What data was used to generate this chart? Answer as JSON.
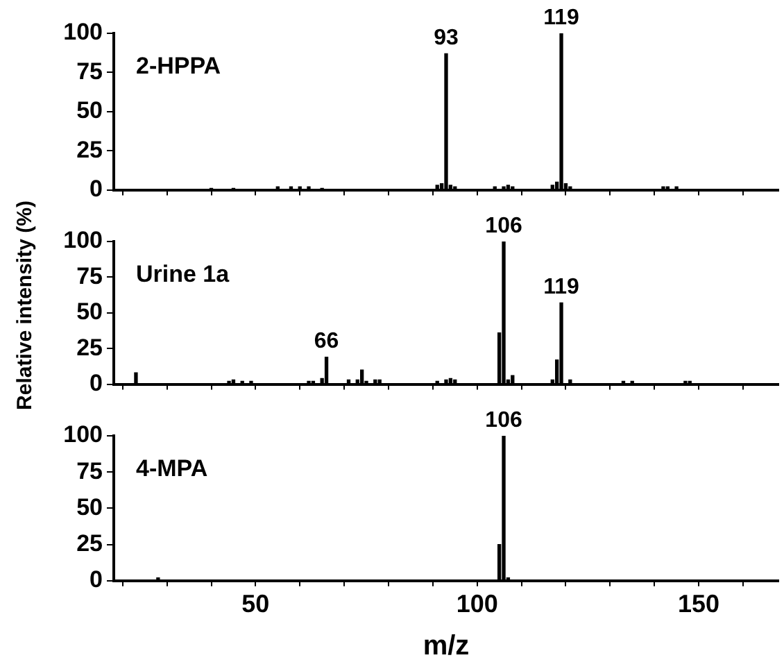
{
  "chart_data": [
    {
      "type": "bar",
      "title": "2-HPPA",
      "x": [
        40,
        45,
        55,
        58,
        60,
        62,
        65,
        91,
        92,
        93,
        94,
        95,
        104,
        106,
        107,
        108,
        117,
        118,
        119,
        120,
        121,
        142,
        143,
        145
      ],
      "values": [
        1,
        1,
        2,
        2,
        2,
        2,
        1,
        3,
        4,
        87,
        3,
        2,
        2,
        2,
        3,
        2,
        3,
        5,
        100,
        4,
        2,
        2,
        2,
        2
      ],
      "color": "#000000",
      "xlim": [
        18,
        168
      ],
      "xticks": [
        {
          "value": 20,
          "label": null
        },
        {
          "value": 30,
          "label": null
        },
        {
          "value": 40,
          "label": null
        },
        50,
        {
          "value": 60,
          "label": null
        },
        {
          "value": 70,
          "label": null
        },
        {
          "value": 80,
          "label": null
        },
        {
          "value": 90,
          "label": null
        },
        100,
        {
          "value": 110,
          "label": null
        },
        {
          "value": 120,
          "label": null
        },
        {
          "value": 130,
          "label": null
        },
        {
          "value": 140,
          "label": null
        },
        150,
        {
          "value": 160,
          "label": null
        }
      ],
      "ylim": [
        0,
        100
      ],
      "yticks": [
        0,
        25,
        50,
        75,
        100
      ],
      "tick_labels": "y",
      "grid": false,
      "legend": false,
      "annotations": [
        {
          "text": "93",
          "x": 93,
          "y": 87
        },
        {
          "text": "119",
          "x": 119,
          "y": 100
        }
      ]
    },
    {
      "type": "bar",
      "title": "Urine 1a",
      "ylabel": "Relative intensity (%)",
      "x": [
        23,
        44,
        45,
        47,
        49,
        62,
        63,
        65,
        66,
        71,
        73,
        74,
        75,
        77,
        78,
        91,
        93,
        94,
        95,
        105,
        106,
        107,
        108,
        117,
        118,
        119,
        121,
        133,
        135,
        147,
        148
      ],
      "values": [
        8,
        2,
        3,
        2,
        2,
        2,
        2,
        4,
        19,
        3,
        3,
        10,
        2,
        3,
        3,
        2,
        3,
        4,
        3,
        36,
        100,
        3,
        6,
        3,
        17,
        57,
        3,
        2,
        2,
        2,
        2
      ],
      "color": "#000000",
      "xlim": [
        18,
        168
      ],
      "xticks": [
        {
          "value": 20,
          "label": null
        },
        {
          "value": 30,
          "label": null
        },
        {
          "value": 40,
          "label": null
        },
        50,
        {
          "value": 60,
          "label": null
        },
        {
          "value": 70,
          "label": null
        },
        {
          "value": 80,
          "label": null
        },
        {
          "value": 90,
          "label": null
        },
        100,
        {
          "value": 110,
          "label": null
        },
        {
          "value": 120,
          "label": null
        },
        {
          "value": 130,
          "label": null
        },
        {
          "value": 140,
          "label": null
        },
        150,
        {
          "value": 160,
          "label": null
        }
      ],
      "ylim": [
        0,
        100
      ],
      "yticks": [
        0,
        25,
        50,
        75,
        100
      ],
      "tick_labels": "y",
      "grid": false,
      "legend": false,
      "annotations": [
        {
          "text": "66",
          "x": 66,
          "y": 19
        },
        {
          "text": "106",
          "x": 106,
          "y": 100
        },
        {
          "text": "119",
          "x": 119,
          "y": 57
        }
      ]
    },
    {
      "type": "bar",
      "title": "4-MPA",
      "xlabel": "m/z",
      "x": [
        28,
        105,
        106,
        107
      ],
      "values": [
        2,
        25,
        100,
        2
      ],
      "color": "#000000",
      "xlim": [
        18,
        168
      ],
      "xticks": [
        {
          "value": 20,
          "label": null
        },
        {
          "value": 30,
          "label": null
        },
        {
          "value": 40,
          "label": null
        },
        50,
        {
          "value": 60,
          "label": null
        },
        {
          "value": 70,
          "label": null
        },
        {
          "value": 80,
          "label": null
        },
        {
          "value": 90,
          "label": null
        },
        100,
        {
          "value": 110,
          "label": null
        },
        {
          "value": 120,
          "label": null
        },
        {
          "value": 130,
          "label": null
        },
        {
          "value": 140,
          "label": null
        },
        150,
        {
          "value": 160,
          "label": null
        }
      ],
      "ylim": [
        0,
        100
      ],
      "yticks": [
        0,
        25,
        50,
        75,
        100
      ],
      "grid": false,
      "legend": false,
      "annotations": [
        {
          "text": "106",
          "x": 106,
          "y": 100
        }
      ]
    }
  ]
}
